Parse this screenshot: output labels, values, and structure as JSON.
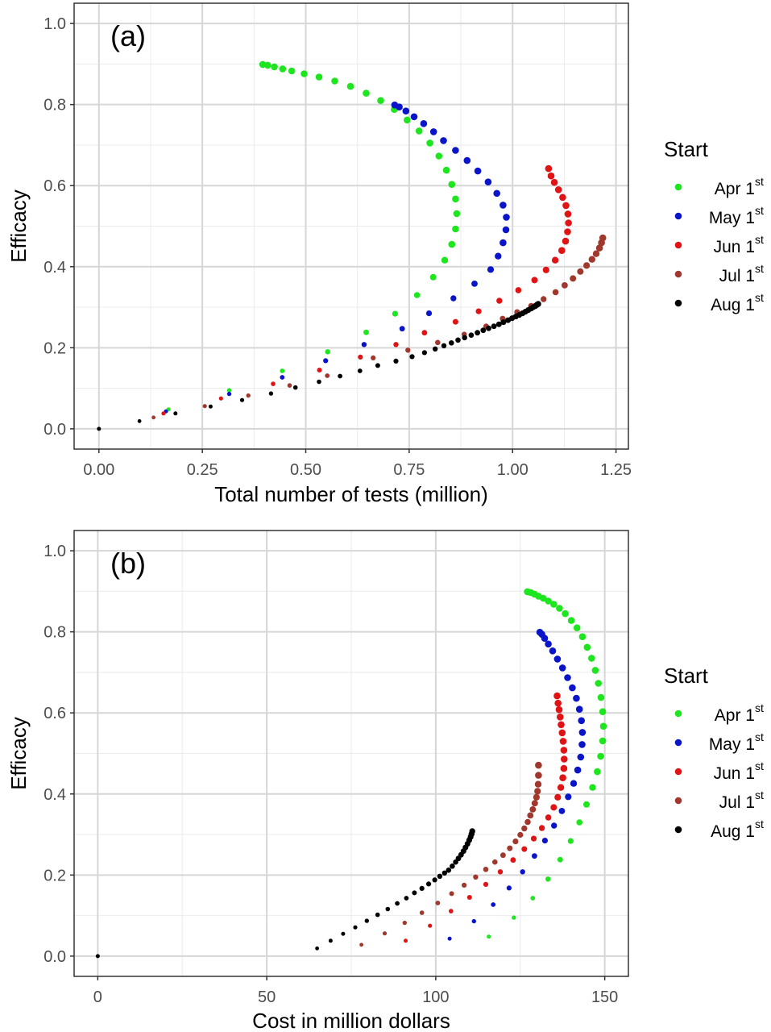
{
  "legend": {
    "title": "Start",
    "superscript": "st",
    "entries": [
      {
        "label": "Apr 1",
        "color": "#1ee61e"
      },
      {
        "label": "May 1",
        "color": "#0a14c8"
      },
      {
        "label": "Jun 1",
        "color": "#e01414"
      },
      {
        "label": "Jul 1",
        "color": "#a0382e"
      },
      {
        "label": "Aug 1",
        "color": "#000000"
      }
    ]
  },
  "chart_data": [
    {
      "type": "scatter",
      "panel_label": "(a)",
      "xlabel": "Total number of tests (million)",
      "ylabel": "Efficacy",
      "xlim": [
        -0.06,
        1.28
      ],
      "ylim": [
        -0.05,
        1.05
      ],
      "xticks": [
        0,
        0.25,
        0.5,
        0.75,
        1.0,
        1.25
      ],
      "xtick_labels": [
        "0.00",
        "0.25",
        "0.50",
        "0.75",
        "1.00",
        "1.25"
      ],
      "yticks": [
        0,
        0.2,
        0.4,
        0.6,
        0.8,
        1.0
      ],
      "ytick_labels": [
        "0.0",
        "0.2",
        "0.4",
        "0.6",
        "0.8",
        "1.0"
      ],
      "grid": true,
      "origin_point": [
        0,
        0
      ],
      "series": [
        {
          "name": "Apr 1st",
          "color": "#1ee61e",
          "x": [
            0.168,
            0.315,
            0.443,
            0.553,
            0.646,
            0.716,
            0.769,
            0.808,
            0.836,
            0.853,
            0.862,
            0.865,
            0.862,
            0.853,
            0.84,
            0.822,
            0.8,
            0.774,
            0.745,
            0.714,
            0.681,
            0.646,
            0.608,
            0.57,
            0.532,
            0.496,
            0.466,
            0.444,
            0.424,
            0.408,
            0.396
          ],
          "y": [
            0.048,
            0.095,
            0.143,
            0.19,
            0.238,
            0.284,
            0.33,
            0.374,
            0.416,
            0.455,
            0.493,
            0.531,
            0.567,
            0.603,
            0.638,
            0.673,
            0.705,
            0.735,
            0.762,
            0.788,
            0.81,
            0.828,
            0.845,
            0.858,
            0.868,
            0.876,
            0.883,
            0.888,
            0.893,
            0.897,
            0.899
          ]
        },
        {
          "name": "May 1st",
          "color": "#0a14c8",
          "x": [
            0.162,
            0.315,
            0.443,
            0.548,
            0.641,
            0.733,
            0.798,
            0.857,
            0.908,
            0.947,
            0.965,
            0.977,
            0.984,
            0.985,
            0.977,
            0.962,
            0.941,
            0.916,
            0.89,
            0.862,
            0.833,
            0.809,
            0.785,
            0.762,
            0.742,
            0.726,
            0.715
          ],
          "y": [
            0.043,
            0.086,
            0.127,
            0.168,
            0.208,
            0.247,
            0.285,
            0.322,
            0.358,
            0.393,
            0.426,
            0.459,
            0.491,
            0.522,
            0.552,
            0.581,
            0.609,
            0.636,
            0.662,
            0.687,
            0.711,
            0.733,
            0.753,
            0.77,
            0.784,
            0.794,
            0.799
          ]
        },
        {
          "name": "Jun 1st",
          "color": "#e01414",
          "x": [
            0.156,
            0.295,
            0.421,
            0.533,
            0.632,
            0.718,
            0.787,
            0.862,
            0.918,
            0.968,
            1.014,
            1.053,
            1.081,
            1.103,
            1.119,
            1.128,
            1.133,
            1.135,
            1.134,
            1.129,
            1.121,
            1.111,
            1.101,
            1.093,
            1.087
          ],
          "y": [
            0.038,
            0.075,
            0.111,
            0.145,
            0.177,
            0.208,
            0.237,
            0.264,
            0.29,
            0.316,
            0.342,
            0.367,
            0.392,
            0.416,
            0.44,
            0.463,
            0.486,
            0.508,
            0.53,
            0.551,
            0.571,
            0.59,
            0.608,
            0.624,
            0.642
          ]
        },
        {
          "name": "Jul 1st",
          "color": "#a0382e",
          "x": [
            0.132,
            0.256,
            0.361,
            0.461,
            0.552,
            0.663,
            0.747,
            0.819,
            0.883,
            0.936,
            0.976,
            1.011,
            1.045,
            1.075,
            1.104,
            1.126,
            1.146,
            1.164,
            1.179,
            1.192,
            1.202,
            1.21,
            1.215,
            1.218
          ],
          "y": [
            0.028,
            0.056,
            0.082,
            0.107,
            0.131,
            0.175,
            0.194,
            0.213,
            0.233,
            0.253,
            0.272,
            0.288,
            0.303,
            0.32,
            0.337,
            0.354,
            0.371,
            0.388,
            0.403,
            0.418,
            0.432,
            0.446,
            0.459,
            0.471
          ]
        },
        {
          "name": "Aug 1st",
          "color": "#000000",
          "x": [
            0.098,
            0.185,
            0.27,
            0.346,
            0.416,
            0.475,
            0.532,
            0.583,
            0.631,
            0.674,
            0.718,
            0.757,
            0.787,
            0.813,
            0.834,
            0.852,
            0.868,
            0.884,
            0.9,
            0.915,
            0.929,
            0.942,
            0.955,
            0.967,
            0.978,
            0.989,
            0.999,
            1.008,
            1.016,
            1.024,
            1.031,
            1.038,
            1.045,
            1.05,
            1.055,
            1.059,
            1.062
          ],
          "y": [
            0.019,
            0.038,
            0.055,
            0.071,
            0.087,
            0.102,
            0.116,
            0.13,
            0.143,
            0.156,
            0.167,
            0.178,
            0.188,
            0.197,
            0.205,
            0.212,
            0.219,
            0.225,
            0.231,
            0.237,
            0.243,
            0.248,
            0.253,
            0.258,
            0.263,
            0.268,
            0.273,
            0.277,
            0.281,
            0.285,
            0.289,
            0.293,
            0.297,
            0.3,
            0.303,
            0.306,
            0.308
          ]
        }
      ]
    },
    {
      "type": "scatter",
      "panel_label": "(b)",
      "xlabel": "Cost in million dollars",
      "ylabel": "Efficacy",
      "xlim": [
        -7,
        157
      ],
      "ylim": [
        -0.05,
        1.05
      ],
      "xticks": [
        0,
        50,
        100,
        150
      ],
      "xtick_labels": [
        "0",
        "50",
        "100",
        "150"
      ],
      "yticks": [
        0,
        0.2,
        0.4,
        0.6,
        0.8,
        1.0
      ],
      "ytick_labels": [
        "0.0",
        "0.2",
        "0.4",
        "0.6",
        "0.8",
        "1.0"
      ],
      "grid": true,
      "origin_point": [
        0,
        0
      ],
      "series": [
        {
          "name": "Apr 1st",
          "color": "#1ee61e",
          "x": [
            115.7,
            123.1,
            128.7,
            133.2,
            136.8,
            139.9,
            142.5,
            144.6,
            146.4,
            147.8,
            148.8,
            149.4,
            149.6,
            149.4,
            148.9,
            148.1,
            147.2,
            146.1,
            144.8,
            143.4,
            141.8,
            140.1,
            138.3,
            136.6,
            134.9,
            133.3,
            131.8,
            130.4,
            129.2,
            128.1,
            127.1
          ],
          "y": [
            0.048,
            0.095,
            0.143,
            0.19,
            0.238,
            0.284,
            0.33,
            0.374,
            0.416,
            0.455,
            0.493,
            0.531,
            0.567,
            0.603,
            0.638,
            0.673,
            0.705,
            0.735,
            0.762,
            0.788,
            0.81,
            0.828,
            0.845,
            0.858,
            0.868,
            0.876,
            0.883,
            0.888,
            0.893,
            0.897,
            0.899
          ]
        },
        {
          "name": "May 1st",
          "color": "#0a14c8",
          "x": [
            104.1,
            111.3,
            117.0,
            121.7,
            125.7,
            129.2,
            132.3,
            135.0,
            137.3,
            139.2,
            140.8,
            142.0,
            142.9,
            143.3,
            143.4,
            143.1,
            142.5,
            141.6,
            140.4,
            139.0,
            137.5,
            136.0,
            134.6,
            133.3,
            132.2,
            131.4,
            130.8
          ],
          "y": [
            0.043,
            0.086,
            0.127,
            0.168,
            0.208,
            0.247,
            0.285,
            0.322,
            0.358,
            0.393,
            0.426,
            0.459,
            0.491,
            0.522,
            0.552,
            0.581,
            0.609,
            0.636,
            0.662,
            0.687,
            0.711,
            0.733,
            0.753,
            0.77,
            0.784,
            0.794,
            0.799
          ]
        },
        {
          "name": "Jun 1st",
          "color": "#e01414",
          "x": [
            91.1,
            98.3,
            104.5,
            110.0,
            114.8,
            119.1,
            122.9,
            126.2,
            129.0,
            131.4,
            133.3,
            134.9,
            136.1,
            137.0,
            137.6,
            137.9,
            138.0,
            137.9,
            137.7,
            137.4,
            137.1,
            136.8,
            136.5,
            136.2,
            135.9
          ],
          "y": [
            0.038,
            0.075,
            0.111,
            0.145,
            0.177,
            0.208,
            0.237,
            0.264,
            0.29,
            0.316,
            0.342,
            0.367,
            0.392,
            0.416,
            0.44,
            0.463,
            0.486,
            0.508,
            0.53,
            0.551,
            0.571,
            0.59,
            0.608,
            0.624,
            0.642
          ]
        },
        {
          "name": "Jul 1st",
          "color": "#a0382e",
          "x": [
            78.0,
            84.9,
            90.8,
            95.9,
            100.6,
            104.7,
            108.4,
            111.8,
            114.8,
            117.5,
            119.9,
            121.9,
            123.6,
            125.0,
            126.2,
            127.2,
            128.0,
            128.7,
            129.3,
            129.8,
            130.1,
            130.3,
            130.4,
            130.4
          ],
          "y": [
            0.028,
            0.056,
            0.082,
            0.107,
            0.131,
            0.154,
            0.175,
            0.195,
            0.214,
            0.232,
            0.249,
            0.266,
            0.283,
            0.299,
            0.315,
            0.331,
            0.347,
            0.362,
            0.377,
            0.392,
            0.407,
            0.424,
            0.446,
            0.471
          ]
        },
        {
          "name": "Aug 1st",
          "color": "#000000",
          "x": [
            64.9,
            68.9,
            72.6,
            76.2,
            79.6,
            82.8,
            85.8,
            88.6,
            91.3,
            93.7,
            95.9,
            97.9,
            99.7,
            101.2,
            102.6,
            103.8,
            104.9,
            105.9,
            106.7,
            107.5,
            108.2,
            108.8,
            109.4,
            109.9,
            110.3,
            110.6,
            110.8
          ],
          "y": [
            0.019,
            0.038,
            0.055,
            0.071,
            0.087,
            0.102,
            0.116,
            0.13,
            0.143,
            0.156,
            0.167,
            0.178,
            0.188,
            0.197,
            0.205,
            0.212,
            0.222,
            0.232,
            0.241,
            0.25,
            0.259,
            0.268,
            0.277,
            0.286,
            0.294,
            0.301,
            0.308
          ]
        }
      ]
    }
  ]
}
